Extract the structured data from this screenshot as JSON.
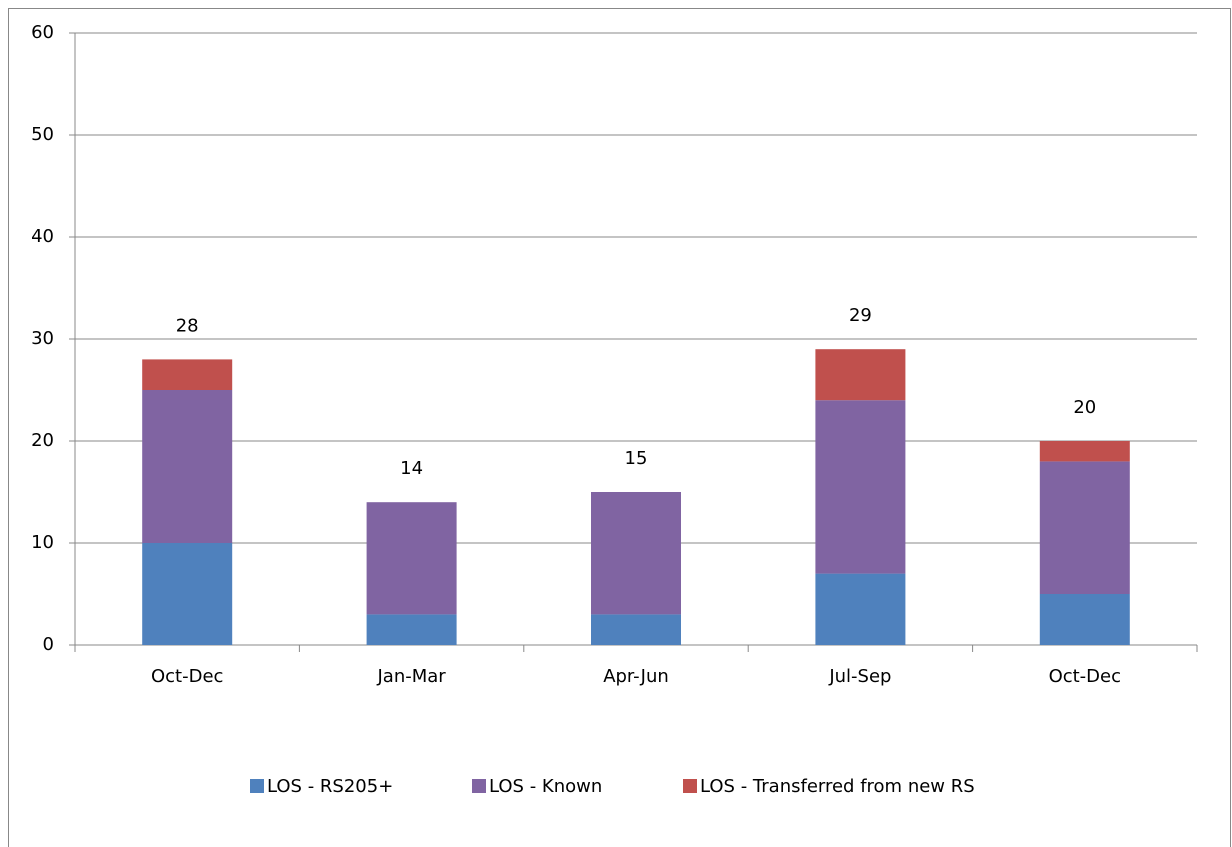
{
  "chart_data": {
    "type": "stacked_bar",
    "categories": [
      "Oct-Dec",
      "Jan-Mar",
      "Apr-Jun",
      "Jul-Sep",
      "Oct-Dec"
    ],
    "series": [
      {
        "name": "LOS - RS205+",
        "color": "#4f81bd",
        "values": [
          10,
          3,
          3,
          7,
          5
        ]
      },
      {
        "name": "LOS - Known",
        "color": "#8064a2",
        "values": [
          15,
          11,
          12,
          17,
          13
        ]
      },
      {
        "name": "LOS - Transferred from new RS",
        "color": "#c0504d",
        "values": [
          3,
          0,
          0,
          5,
          2
        ]
      }
    ],
    "totals": [
      28,
      14,
      15,
      29,
      20
    ],
    "ylim": [
      0,
      60
    ],
    "yticks": [
      0,
      10,
      20,
      30,
      40,
      50,
      60
    ],
    "grid": true,
    "legend": "bottom"
  }
}
